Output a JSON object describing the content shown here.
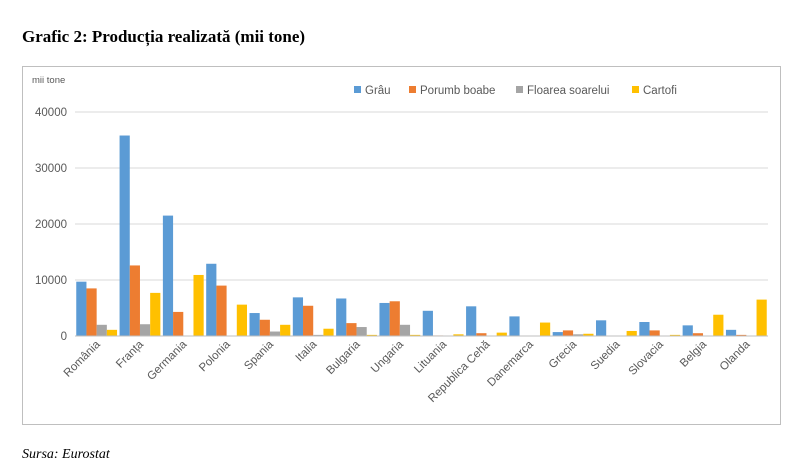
{
  "page": {
    "title": "Grafic 2: Producția realizată (mii tone)",
    "source": "Sursa: Eurostat"
  },
  "chart_data": {
    "type": "bar",
    "title": "",
    "ylabel": "mii tone",
    "xlabel": "",
    "ylim": [
      0,
      40000
    ],
    "yticks": [
      0,
      10000,
      20000,
      30000,
      40000
    ],
    "grid": true,
    "legend_position": "top-right",
    "categories": [
      "România",
      "Franța",
      "Germania",
      "Polonia",
      "Spania",
      "Italia",
      "Bulgaria",
      "Ungaria",
      "Lituania",
      "Republica Cehă",
      "Danemarca",
      "Grecia",
      "Suedia",
      "Slovacia",
      "Belgia",
      "Olanda"
    ],
    "series": [
      {
        "name": "Grâu",
        "color": "#5b9bd5",
        "values": [
          9700,
          35800,
          21500,
          12900,
          4100,
          6900,
          6700,
          5900,
          4500,
          5300,
          3500,
          700,
          2800,
          2500,
          1900,
          1100
        ]
      },
      {
        "name": "Porumb boabe",
        "color": "#ed7d31",
        "values": [
          8500,
          12600,
          4300,
          9000,
          2900,
          5400,
          2300,
          6200,
          100,
          500,
          0,
          1000,
          0,
          1000,
          500,
          200
        ]
      },
      {
        "name": "Floarea soarelui",
        "color": "#a5a5a5",
        "values": [
          2000,
          2100,
          0,
          0,
          800,
          200,
          1600,
          2000,
          0,
          0,
          0,
          300,
          0,
          0,
          0,
          0
        ]
      },
      {
        "name": "Cartofi",
        "color": "#ffc000",
        "values": [
          1100,
          7700,
          10900,
          5600,
          2000,
          1300,
          200,
          200,
          300,
          600,
          2400,
          400,
          900,
          200,
          3800,
          6500
        ]
      }
    ]
  }
}
